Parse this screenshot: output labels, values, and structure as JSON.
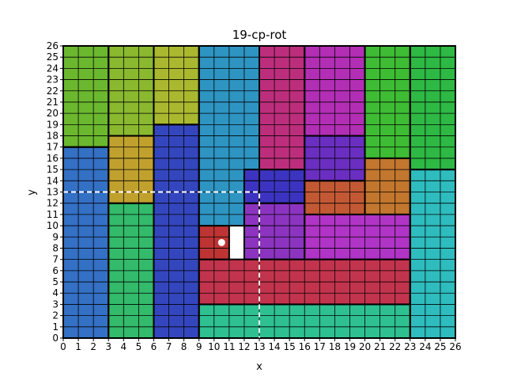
{
  "title": "19-cp-rot",
  "xlabel": "x",
  "ylabel": "y",
  "chart_data": {
    "type": "rect-packing",
    "xlim": [
      0,
      26
    ],
    "ylim": [
      0,
      26
    ],
    "x_ticks": [
      0,
      1,
      2,
      3,
      4,
      5,
      6,
      7,
      8,
      9,
      10,
      11,
      12,
      13,
      14,
      15,
      16,
      17,
      18,
      19,
      20,
      21,
      22,
      23,
      24,
      25,
      26
    ],
    "y_ticks": [
      0,
      1,
      2,
      3,
      4,
      5,
      6,
      7,
      8,
      9,
      10,
      11,
      12,
      13,
      14,
      15,
      16,
      17,
      18,
      19,
      20,
      21,
      22,
      23,
      24,
      25,
      26
    ],
    "rectangles": [
      {
        "x": 0,
        "y": 0,
        "w": 3,
        "h": 17,
        "color": "#3470c4"
      },
      {
        "x": 0,
        "y": 17,
        "w": 3,
        "h": 9,
        "color": "#6bb82f"
      },
      {
        "x": 3,
        "y": 0,
        "w": 3,
        "h": 12,
        "color": "#33ba6a"
      },
      {
        "x": 3,
        "y": 12,
        "w": 3,
        "h": 6,
        "color": "#c1a12e"
      },
      {
        "x": 3,
        "y": 18,
        "w": 3,
        "h": 8,
        "color": "#8ab82f"
      },
      {
        "x": 6,
        "y": 0,
        "w": 3,
        "h": 19,
        "color": "#3446be"
      },
      {
        "x": 6,
        "y": 19,
        "w": 3,
        "h": 7,
        "color": "#aab82f"
      },
      {
        "x": 9,
        "y": 10,
        "w": 4,
        "h": 16,
        "color": "#2e94c2"
      },
      {
        "x": 9,
        "y": 7,
        "w": 2,
        "h": 3,
        "color": "#be3434"
      },
      {
        "x": 9,
        "y": 3,
        "w": 14,
        "h": 4,
        "color": "#c2344d"
      },
      {
        "x": 9,
        "y": 0,
        "w": 14,
        "h": 3,
        "color": "#2ec090"
      },
      {
        "x": 13,
        "y": 15,
        "w": 3,
        "h": 11,
        "color": "#bc2e7c"
      },
      {
        "x": 12,
        "y": 12,
        "w": 4,
        "h": 3,
        "color": "#3c34c0"
      },
      {
        "x": 12,
        "y": 7,
        "w": 4,
        "h": 5,
        "color": "#8c34c0"
      },
      {
        "x": 16,
        "y": 18,
        "w": 4,
        "h": 8,
        "color": "#b22eb4"
      },
      {
        "x": 16,
        "y": 14,
        "w": 4,
        "h": 4,
        "color": "#6a2ec0"
      },
      {
        "x": 16,
        "y": 11,
        "w": 4,
        "h": 3,
        "color": "#c25934"
      },
      {
        "x": 16,
        "y": 7,
        "w": 7,
        "h": 4,
        "color": "#b034c6"
      },
      {
        "x": 20,
        "y": 16,
        "w": 3,
        "h": 10,
        "color": "#3ebc34"
      },
      {
        "x": 20,
        "y": 11,
        "w": 3,
        "h": 5,
        "color": "#c2762e"
      },
      {
        "x": 23,
        "y": 15,
        "w": 3,
        "h": 11,
        "color": "#2eb844"
      },
      {
        "x": 23,
        "y": 0,
        "w": 3,
        "h": 15,
        "color": "#2ebcbe"
      }
    ],
    "dashed_path": [
      [
        0,
        13
      ],
      [
        13,
        13
      ],
      [
        13,
        0
      ]
    ],
    "marker_point": [
      10.5,
      8.5
    ]
  }
}
